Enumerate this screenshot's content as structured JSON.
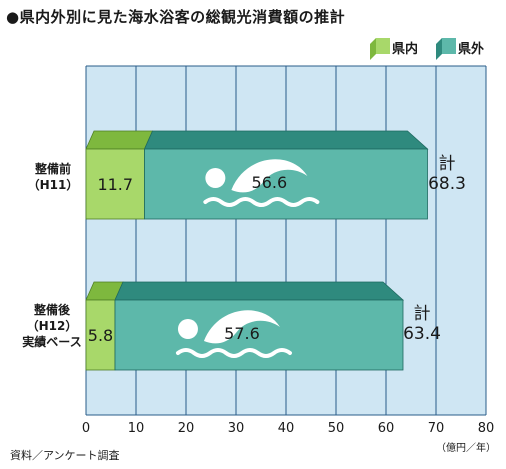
{
  "title": "●県内外別に見た海水浴客の総観光消費額の推計",
  "source": "資料／アンケート調査",
  "unit_label": "（億円／年）",
  "colors": {
    "plot_bg": "#cfe6f3",
    "grid": "#2a5c8a",
    "inner": "#a8d86a",
    "inner_dark": "#7eb83e",
    "outer": "#5db8aa",
    "outer_dark": "#2f8a7e",
    "wave": "#ffffff"
  },
  "legend": [
    "県内",
    "県外"
  ],
  "categories": [
    {
      "line1": "整備前",
      "line2": "（H11）",
      "line3": ""
    },
    {
      "line1": "整備後",
      "line2": "（H12）",
      "line3": "実績ベース"
    }
  ],
  "totals": [
    {
      "label": "計",
      "value": "68.3"
    },
    {
      "label": "計",
      "value": "63.4"
    }
  ],
  "chart_data": {
    "type": "bar",
    "orientation": "horizontal",
    "stacked": true,
    "title": "●県内外別に見た海水浴客の総観光消費額の推計",
    "xlabel": "（億円／年）",
    "categories": [
      "整備前（H11）",
      "整備後（H12）実績ベース"
    ],
    "series": [
      {
        "name": "県内",
        "values": [
          11.7,
          5.8
        ]
      },
      {
        "name": "県外",
        "values": [
          56.6,
          57.6
        ]
      }
    ],
    "totals": [
      68.3,
      63.4
    ],
    "xlim": [
      0,
      80
    ],
    "xticks": [
      0,
      10,
      20,
      30,
      40,
      50,
      60,
      70,
      80
    ],
    "grid": true,
    "legend_position": "top-right"
  }
}
